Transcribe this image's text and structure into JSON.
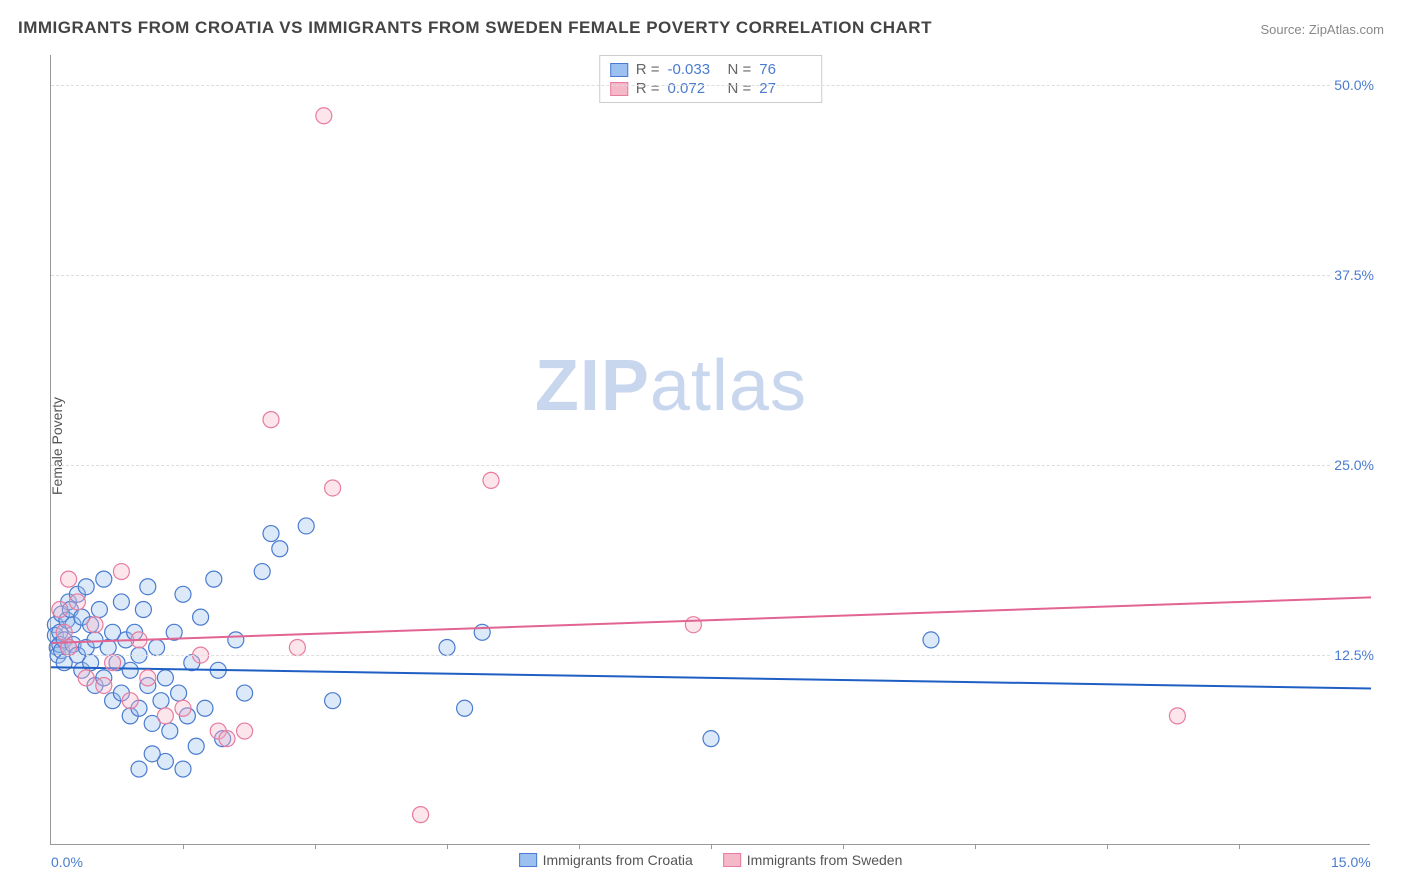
{
  "title": "IMMIGRANTS FROM CROATIA VS IMMIGRANTS FROM SWEDEN FEMALE POVERTY CORRELATION CHART",
  "source": "Source: ZipAtlas.com",
  "ylabel": "Female Poverty",
  "watermark_bold": "ZIP",
  "watermark_rest": "atlas",
  "chart": {
    "type": "scatter",
    "xlim": [
      0,
      15
    ],
    "ylim": [
      0,
      52
    ],
    "x_ticks_minor": [
      1.5,
      3.0,
      4.5,
      6.0,
      7.5,
      9.0,
      10.5,
      12.0,
      13.5
    ],
    "x_tick_labels": [
      {
        "x": 0,
        "label": "0.0%"
      },
      {
        "x": 15,
        "label": "15.0%"
      }
    ],
    "y_gridlines": [
      12.5,
      25.0,
      37.5,
      50.0
    ],
    "y_tick_labels": [
      {
        "y": 12.5,
        "label": "12.5%"
      },
      {
        "y": 25.0,
        "label": "25.0%"
      },
      {
        "y": 37.5,
        "label": "37.5%"
      },
      {
        "y": 50.0,
        "label": "50.0%"
      }
    ],
    "background_color": "#ffffff",
    "grid_color": "#dddddd",
    "axis_color": "#999999",
    "marker_radius": 8,
    "marker_stroke_width": 1.2,
    "marker_fill_opacity": 0.35,
    "trend_line_width": 2,
    "series": [
      {
        "name": "Immigrants from Croatia",
        "fill": "#9cc0ef",
        "stroke": "#4a7bd0",
        "line_color": "#1f5fc4",
        "R": "-0.033",
        "N": "76",
        "trend": {
          "y_at_x0": 11.7,
          "y_at_x15": 10.3
        },
        "points": [
          [
            0.05,
            14.5
          ],
          [
            0.05,
            13.8
          ],
          [
            0.07,
            13.0
          ],
          [
            0.08,
            12.5
          ],
          [
            0.1,
            14.0
          ],
          [
            0.1,
            13.2
          ],
          [
            0.12,
            12.8
          ],
          [
            0.12,
            15.2
          ],
          [
            0.15,
            13.5
          ],
          [
            0.15,
            12.0
          ],
          [
            0.18,
            14.8
          ],
          [
            0.2,
            13.0
          ],
          [
            0.2,
            16.0
          ],
          [
            0.22,
            15.5
          ],
          [
            0.25,
            14.5
          ],
          [
            0.25,
            13.2
          ],
          [
            0.3,
            12.5
          ],
          [
            0.3,
            16.5
          ],
          [
            0.35,
            11.5
          ],
          [
            0.35,
            15.0
          ],
          [
            0.4,
            13.0
          ],
          [
            0.4,
            17.0
          ],
          [
            0.45,
            12.0
          ],
          [
            0.45,
            14.5
          ],
          [
            0.5,
            10.5
          ],
          [
            0.5,
            13.5
          ],
          [
            0.55,
            15.5
          ],
          [
            0.6,
            11.0
          ],
          [
            0.6,
            17.5
          ],
          [
            0.65,
            13.0
          ],
          [
            0.7,
            9.5
          ],
          [
            0.7,
            14.0
          ],
          [
            0.75,
            12.0
          ],
          [
            0.8,
            10.0
          ],
          [
            0.8,
            16.0
          ],
          [
            0.85,
            13.5
          ],
          [
            0.9,
            11.5
          ],
          [
            0.9,
            8.5
          ],
          [
            0.95,
            14.0
          ],
          [
            1.0,
            9.0
          ],
          [
            1.0,
            12.5
          ],
          [
            1.05,
            15.5
          ],
          [
            1.1,
            10.5
          ],
          [
            1.1,
            17.0
          ],
          [
            1.15,
            8.0
          ],
          [
            1.2,
            13.0
          ],
          [
            1.25,
            9.5
          ],
          [
            1.3,
            11.0
          ],
          [
            1.35,
            7.5
          ],
          [
            1.4,
            14.0
          ],
          [
            1.45,
            10.0
          ],
          [
            1.5,
            16.5
          ],
          [
            1.55,
            8.5
          ],
          [
            1.6,
            12.0
          ],
          [
            1.65,
            6.5
          ],
          [
            1.7,
            15.0
          ],
          [
            1.75,
            9.0
          ],
          [
            1.85,
            17.5
          ],
          [
            1.9,
            11.5
          ],
          [
            1.95,
            7.0
          ],
          [
            1.0,
            5.0
          ],
          [
            1.3,
            5.5
          ],
          [
            1.5,
            5.0
          ],
          [
            1.15,
            6.0
          ],
          [
            2.1,
            13.5
          ],
          [
            2.2,
            10.0
          ],
          [
            2.4,
            18.0
          ],
          [
            2.5,
            20.5
          ],
          [
            2.6,
            19.5
          ],
          [
            2.9,
            21.0
          ],
          [
            3.2,
            9.5
          ],
          [
            4.5,
            13.0
          ],
          [
            4.7,
            9.0
          ],
          [
            4.9,
            14.0
          ],
          [
            7.5,
            7.0
          ],
          [
            10.0,
            13.5
          ]
        ]
      },
      {
        "name": "Immigrants from Sweden",
        "fill": "#f5b8c9",
        "stroke": "#e87ba0",
        "line_color": "#e26492",
        "R": "0.072",
        "N": "27",
        "trend": {
          "y_at_x0": 13.3,
          "y_at_x15": 16.3
        },
        "points": [
          [
            0.1,
            15.5
          ],
          [
            0.15,
            14.0
          ],
          [
            0.2,
            17.5
          ],
          [
            0.2,
            13.0
          ],
          [
            0.3,
            16.0
          ],
          [
            0.4,
            11.0
          ],
          [
            0.5,
            14.5
          ],
          [
            0.6,
            10.5
          ],
          [
            0.7,
            12.0
          ],
          [
            0.8,
            18.0
          ],
          [
            0.9,
            9.5
          ],
          [
            1.0,
            13.5
          ],
          [
            1.1,
            11.0
          ],
          [
            1.3,
            8.5
          ],
          [
            1.5,
            9.0
          ],
          [
            1.7,
            12.5
          ],
          [
            1.9,
            7.5
          ],
          [
            2.0,
            7.0
          ],
          [
            2.2,
            7.5
          ],
          [
            2.5,
            28.0
          ],
          [
            2.8,
            13.0
          ],
          [
            3.1,
            48.0
          ],
          [
            3.2,
            23.5
          ],
          [
            4.2,
            2.0
          ],
          [
            5.0,
            24.0
          ],
          [
            7.3,
            14.5
          ],
          [
            12.8,
            8.5
          ]
        ]
      }
    ]
  },
  "legend_top": {
    "r_label": "R =",
    "n_label": "N ="
  }
}
